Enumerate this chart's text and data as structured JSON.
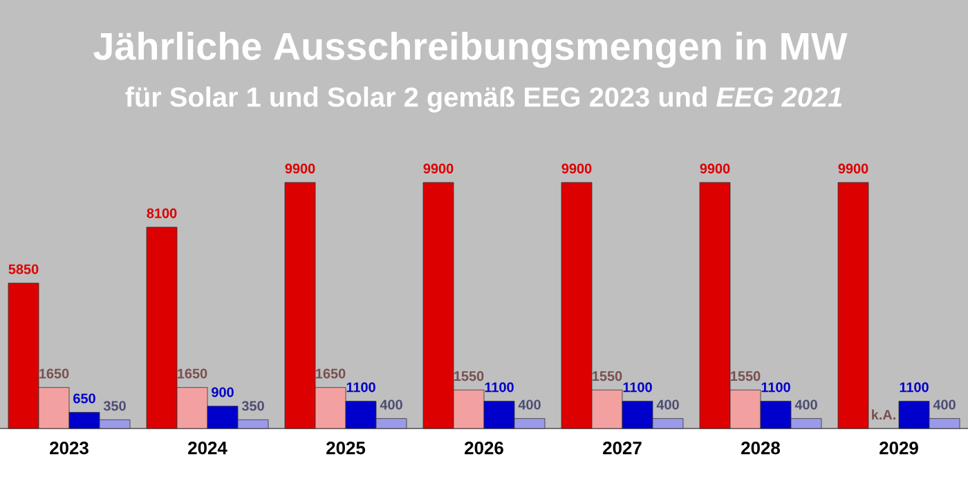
{
  "chart_data": {
    "type": "bar",
    "title": "Jährliche Ausschreibungsmengen in MW",
    "subtitle": "für Solar 1 und Solar 2 gemäß EEG 2023 und *EEG 2021*",
    "categories": [
      "2023",
      "2024",
      "2025",
      "2026",
      "2027",
      "2028",
      "2029"
    ],
    "series": [
      {
        "color": "#dd0000",
        "values": [
          5850,
          8100,
          9900,
          9900,
          9900,
          9900,
          9900
        ],
        "value_labels": [
          "5850",
          "8100",
          "9900",
          "9900",
          "9900",
          "9900",
          "9900"
        ]
      },
      {
        "color": "#f2a0a0",
        "values": [
          1650,
          1650,
          1650,
          1550,
          1550,
          1550,
          null
        ],
        "value_labels": [
          "1650",
          "1650",
          "1650",
          "1550",
          "1550",
          "1550",
          "k.A."
        ]
      },
      {
        "color": "#0000cc",
        "values": [
          650,
          900,
          1100,
          1100,
          1100,
          1100,
          1100
        ],
        "value_labels": [
          "650",
          "900",
          "1100",
          "1100",
          "1100",
          "1100",
          "1100"
        ]
      },
      {
        "color": "#9a9ae8",
        "values": [
          350,
          350,
          400,
          400,
          400,
          400,
          400
        ],
        "value_labels": [
          "350",
          "350",
          "400",
          "400",
          "400",
          "400",
          "400"
        ]
      }
    ]
  }
}
